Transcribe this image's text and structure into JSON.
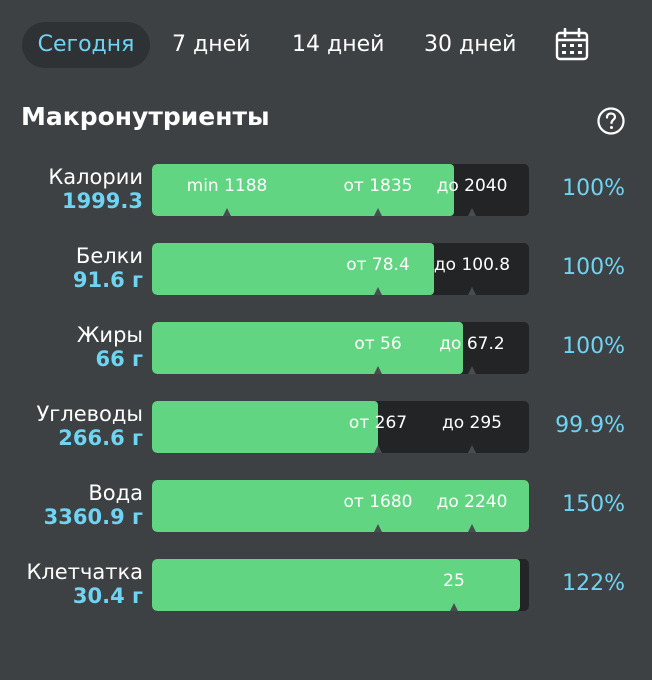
{
  "tabs": [
    {
      "label": "Сегодня",
      "active": true
    },
    {
      "label": "7 дней",
      "active": false
    },
    {
      "label": "14 дней",
      "active": false
    },
    {
      "label": "30 дней",
      "active": false
    }
  ],
  "section_title": "Макронутриенты",
  "icons": {
    "calendar": "calendar-icon",
    "help": "help-icon"
  },
  "colors": {
    "accent": "#6fd3f2",
    "bar_fill": "#62d583",
    "bar_bg": "#232426",
    "background": "#3e4144"
  },
  "nutrients": [
    {
      "name": "Калории",
      "value": "1999.3",
      "percent": "100%",
      "fill_fraction": 0.8,
      "markers": [
        {
          "label": "min 1188",
          "pos": 0.2
        },
        {
          "label": "от 1835",
          "pos": 0.6
        },
        {
          "label": "до 2040",
          "pos": 0.85
        }
      ]
    },
    {
      "name": "Белки",
      "value": "91.6 г",
      "percent": "100%",
      "fill_fraction": 0.747,
      "markers": [
        {
          "label": "от 78.4",
          "pos": 0.6
        },
        {
          "label": "до 100.8",
          "pos": 0.85
        }
      ]
    },
    {
      "name": "Жиры",
      "value": "66 г",
      "percent": "100%",
      "fill_fraction": 0.825,
      "markers": [
        {
          "label": "от 56",
          "pos": 0.6
        },
        {
          "label": "до 67.2",
          "pos": 0.85
        }
      ]
    },
    {
      "name": "Углеводы",
      "value": "266.6 г",
      "percent": "99.9%",
      "fill_fraction": 0.599,
      "markers": [
        {
          "label": "от 267",
          "pos": 0.6
        },
        {
          "label": "до 295",
          "pos": 0.85
        }
      ]
    },
    {
      "name": "Вода",
      "value": "3360.9 г",
      "percent": "150%",
      "fill_fraction": 1.0,
      "markers": [
        {
          "label": "от 1680",
          "pos": 0.6
        },
        {
          "label": "до 2240",
          "pos": 0.85
        }
      ]
    },
    {
      "name": "Клетчатка",
      "value": "30.4 г",
      "percent": "122%",
      "fill_fraction": 0.976,
      "markers": [
        {
          "label": "25",
          "pos": 0.8
        }
      ]
    }
  ]
}
